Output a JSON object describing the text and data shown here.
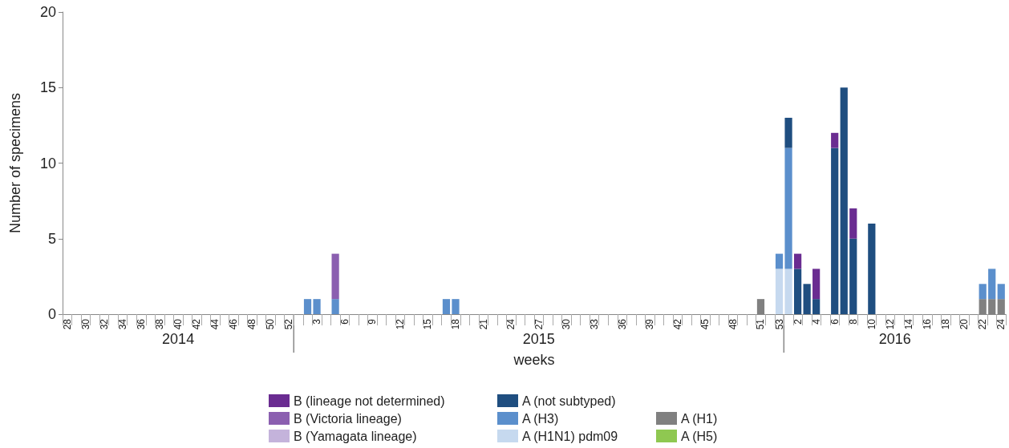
{
  "chart_data": {
    "type": "bar",
    "stacked": true,
    "xlabel": "weeks",
    "ylabel": "Number of specimens",
    "categories": [
      "28",
      null,
      "30",
      null,
      "32",
      null,
      "34",
      null,
      "36",
      null,
      "38",
      null,
      "40",
      null,
      "42",
      null,
      "44",
      null,
      "46",
      null,
      "48",
      null,
      "50",
      null,
      "52",
      null,
      null,
      "3",
      null,
      null,
      "6",
      null,
      null,
      "9",
      null,
      null,
      "12",
      null,
      null,
      "15",
      null,
      null,
      "18",
      null,
      null,
      "21",
      null,
      null,
      "24",
      null,
      null,
      "27",
      null,
      null,
      "30",
      null,
      null,
      "33",
      null,
      null,
      "36",
      null,
      null,
      "39",
      null,
      null,
      "42",
      null,
      null,
      "45",
      null,
      null,
      "48",
      null,
      null,
      "51",
      null,
      "53",
      null,
      "2",
      null,
      "4",
      null,
      "6",
      null,
      "8",
      null,
      "10",
      null,
      "12",
      null,
      "14",
      null,
      "16",
      null,
      "18",
      null,
      "20",
      null,
      "22",
      null,
      "24"
    ],
    "series": [
      {
        "name": "A (H5)",
        "color": "#8fc851",
        "values": [
          0,
          0,
          0,
          0,
          0,
          0,
          0,
          0,
          0,
          0,
          0,
          0,
          0,
          0,
          0,
          0,
          0,
          0,
          0,
          0,
          0,
          0,
          0,
          0,
          0,
          0,
          0,
          0,
          0,
          0,
          0,
          0,
          0,
          0,
          0,
          0,
          0,
          0,
          0,
          0,
          0,
          0,
          0,
          0,
          0,
          0,
          0,
          0,
          0,
          0,
          0,
          0,
          0,
          0,
          0,
          0,
          0,
          0,
          0,
          0,
          0,
          0,
          0,
          0,
          0,
          0,
          0,
          0,
          0,
          0,
          0,
          0,
          0,
          0,
          0,
          0,
          0,
          0,
          0,
          0,
          0,
          0,
          0,
          0,
          0,
          0,
          0,
          0,
          0,
          0,
          0,
          0,
          0,
          0,
          0,
          0,
          0,
          0,
          0,
          0,
          0,
          0
        ]
      },
      {
        "name": "A (H1)",
        "color": "#808080",
        "values": [
          0,
          0,
          0,
          0,
          0,
          0,
          0,
          0,
          0,
          0,
          0,
          0,
          0,
          0,
          0,
          0,
          0,
          0,
          0,
          0,
          0,
          0,
          0,
          0,
          0,
          0,
          0,
          0,
          0,
          0,
          0,
          0,
          0,
          0,
          0,
          0,
          0,
          0,
          0,
          0,
          0,
          0,
          0,
          0,
          0,
          0,
          0,
          0,
          0,
          0,
          0,
          0,
          0,
          0,
          0,
          0,
          0,
          0,
          0,
          0,
          0,
          0,
          0,
          0,
          0,
          0,
          0,
          0,
          0,
          0,
          0,
          0,
          0,
          0,
          0,
          1,
          0,
          0,
          0,
          0,
          0,
          0,
          0,
          0,
          0,
          0,
          0,
          0,
          0,
          0,
          0,
          0,
          0,
          0,
          0,
          0,
          0,
          0,
          0,
          1,
          1,
          1
        ]
      },
      {
        "name": "A (H1N1) pdm09",
        "color": "#c6d9ef",
        "values": [
          0,
          0,
          0,
          0,
          0,
          0,
          0,
          0,
          0,
          0,
          0,
          0,
          0,
          0,
          0,
          0,
          0,
          0,
          0,
          0,
          0,
          0,
          0,
          0,
          0,
          0,
          0,
          0,
          0,
          0,
          0,
          0,
          0,
          0,
          0,
          0,
          0,
          0,
          0,
          0,
          0,
          0,
          0,
          0,
          0,
          0,
          0,
          0,
          0,
          0,
          0,
          0,
          0,
          0,
          0,
          0,
          0,
          0,
          0,
          0,
          0,
          0,
          0,
          0,
          0,
          0,
          0,
          0,
          0,
          0,
          0,
          0,
          0,
          0,
          0,
          0,
          0,
          3,
          3,
          0,
          0,
          0,
          0,
          0,
          0,
          0,
          0,
          0,
          0,
          0,
          0,
          0,
          0,
          0,
          0,
          0,
          0,
          0,
          0,
          0,
          0,
          0
        ]
      },
      {
        "name": "A (H3)",
        "color": "#5b8fcc",
        "values": [
          0,
          0,
          0,
          0,
          0,
          0,
          0,
          0,
          0,
          0,
          0,
          0,
          0,
          0,
          0,
          0,
          0,
          0,
          0,
          0,
          0,
          0,
          0,
          0,
          0,
          0,
          1,
          1,
          0,
          1,
          0,
          0,
          0,
          0,
          0,
          0,
          0,
          0,
          0,
          0,
          0,
          1,
          1,
          0,
          0,
          0,
          0,
          0,
          0,
          0,
          0,
          0,
          0,
          0,
          0,
          0,
          0,
          0,
          0,
          0,
          0,
          0,
          0,
          0,
          0,
          0,
          0,
          0,
          0,
          0,
          0,
          0,
          0,
          0,
          0,
          0,
          0,
          1,
          8,
          0,
          0,
          0,
          0,
          0,
          0,
          0,
          0,
          0,
          0,
          0,
          0,
          0,
          0,
          0,
          0,
          0,
          0,
          0,
          0,
          1,
          2,
          1
        ]
      },
      {
        "name": "A (not subtyped)",
        "color": "#1f4e80",
        "values": [
          0,
          0,
          0,
          0,
          0,
          0,
          0,
          0,
          0,
          0,
          0,
          0,
          0,
          0,
          0,
          0,
          0,
          0,
          0,
          0,
          0,
          0,
          0,
          0,
          0,
          0,
          0,
          0,
          0,
          0,
          0,
          0,
          0,
          0,
          0,
          0,
          0,
          0,
          0,
          0,
          0,
          0,
          0,
          0,
          0,
          0,
          0,
          0,
          0,
          0,
          0,
          0,
          0,
          0,
          0,
          0,
          0,
          0,
          0,
          0,
          0,
          0,
          0,
          0,
          0,
          0,
          0,
          0,
          0,
          0,
          0,
          0,
          0,
          0,
          0,
          0,
          0,
          0,
          2,
          3,
          2,
          1,
          0,
          11,
          15,
          5,
          0,
          6,
          0,
          0,
          0,
          0,
          0,
          0,
          0,
          0,
          0,
          0,
          0,
          0,
          0,
          0
        ]
      },
      {
        "name": "B (Yamagata lineage)",
        "color": "#c4b3db",
        "values": [
          0,
          0,
          0,
          0,
          0,
          0,
          0,
          0,
          0,
          0,
          0,
          0,
          0,
          0,
          0,
          0,
          0,
          0,
          0,
          0,
          0,
          0,
          0,
          0,
          0,
          0,
          0,
          0,
          0,
          0,
          0,
          0,
          0,
          0,
          0,
          0,
          0,
          0,
          0,
          0,
          0,
          0,
          0,
          0,
          0,
          0,
          0,
          0,
          0,
          0,
          0,
          0,
          0,
          0,
          0,
          0,
          0,
          0,
          0,
          0,
          0,
          0,
          0,
          0,
          0,
          0,
          0,
          0,
          0,
          0,
          0,
          0,
          0,
          0,
          0,
          0,
          0,
          0,
          0,
          0,
          0,
          0,
          0,
          0,
          0,
          0,
          0,
          0,
          0,
          0,
          0,
          0,
          0,
          0,
          0,
          0,
          0,
          0,
          0,
          0,
          0,
          0
        ]
      },
      {
        "name": "B (Victoria lineage)",
        "color": "#8b5fb0",
        "values": [
          0,
          0,
          0,
          0,
          0,
          0,
          0,
          0,
          0,
          0,
          0,
          0,
          0,
          0,
          0,
          0,
          0,
          0,
          0,
          0,
          0,
          0,
          0,
          0,
          0,
          0,
          0,
          0,
          0,
          3,
          0,
          0,
          0,
          0,
          0,
          0,
          0,
          0,
          0,
          0,
          0,
          0,
          0,
          0,
          0,
          0,
          0,
          0,
          0,
          0,
          0,
          0,
          0,
          0,
          0,
          0,
          0,
          0,
          0,
          0,
          0,
          0,
          0,
          0,
          0,
          0,
          0,
          0,
          0,
          0,
          0,
          0,
          0,
          0,
          0,
          0,
          0,
          0,
          0,
          0,
          0,
          0,
          0,
          0,
          0,
          0,
          0,
          0,
          0,
          0,
          0,
          0,
          0,
          0,
          0,
          0,
          0,
          0,
          0,
          0,
          0,
          0
        ]
      },
      {
        "name": "B (lineage not determined)",
        "color": "#6a2c91",
        "values": [
          0,
          0,
          0,
          0,
          0,
          0,
          0,
          0,
          0,
          0,
          0,
          0,
          0,
          0,
          0,
          0,
          0,
          0,
          0,
          0,
          0,
          0,
          0,
          0,
          0,
          0,
          0,
          0,
          0,
          0,
          0,
          0,
          0,
          0,
          0,
          0,
          0,
          0,
          0,
          0,
          0,
          0,
          0,
          0,
          0,
          0,
          0,
          0,
          0,
          0,
          0,
          0,
          0,
          0,
          0,
          0,
          0,
          0,
          0,
          0,
          0,
          0,
          0,
          0,
          0,
          0,
          0,
          0,
          0,
          0,
          0,
          0,
          0,
          0,
          0,
          0,
          0,
          0,
          0,
          1,
          0,
          2,
          0,
          1,
          0,
          2,
          0,
          0,
          0,
          0,
          0,
          0,
          0,
          0,
          0,
          0,
          0,
          0,
          0,
          0,
          0,
          0
        ]
      }
    ],
    "ylim": [
      0,
      20
    ],
    "yticks": [
      0,
      5,
      10,
      15,
      20
    ],
    "grid": false,
    "legend": "bottom",
    "annotations": [
      "2014",
      "2015",
      "2016"
    ]
  }
}
